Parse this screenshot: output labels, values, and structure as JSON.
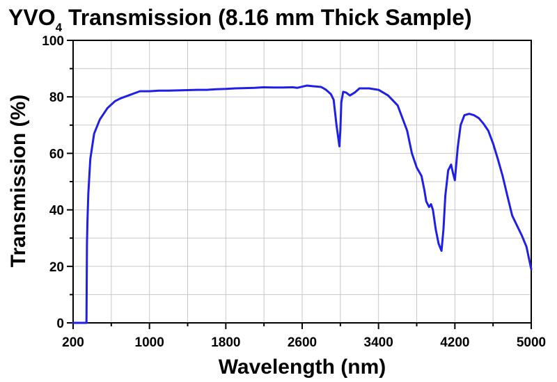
{
  "chart_data": {
    "type": "line",
    "title_main": "YVO",
    "title_sub": "4",
    "title_rest": " Transmission (8.16 mm Thick Sample)",
    "xlabel": "Wavelength (nm)",
    "ylabel": "Transmission (%)",
    "xlim": [
      200,
      5000
    ],
    "ylim": [
      0,
      100
    ],
    "xticks": [
      "200",
      "1000",
      "1800",
      "2600",
      "3400",
      "4200",
      "5000"
    ],
    "yticks": [
      "0",
      "20",
      "40",
      "60",
      "80",
      "100"
    ],
    "grid": true,
    "line_color": "#1f1fe6",
    "series": [
      {
        "x": [
          200,
          340,
          345,
          350,
          360,
          380,
          420,
          480,
          560,
          640,
          700,
          780,
          860,
          900,
          950,
          1000,
          1100,
          1200,
          1300,
          1400,
          1500,
          1600,
          1700,
          1800,
          1900,
          2000,
          2100,
          2200,
          2300,
          2400,
          2500,
          2550,
          2600,
          2650,
          2700,
          2800,
          2850,
          2900,
          2930,
          2960,
          2990,
          3000,
          3010,
          3030,
          3060,
          3100,
          3150,
          3200,
          3250,
          3300,
          3400,
          3500,
          3600,
          3700,
          3750,
          3800,
          3850,
          3880,
          3900,
          3930,
          3950,
          3970,
          4000,
          4030,
          4060,
          4080,
          4100,
          4130,
          4160,
          4180,
          4200,
          4230,
          4260,
          4300,
          4350,
          4400,
          4450,
          4500,
          4550,
          4600,
          4650,
          4700,
          4750,
          4800,
          4850,
          4900,
          4950,
          5000
        ],
        "y": [
          0,
          0,
          28,
          36,
          46,
          58,
          67,
          72,
          76,
          78.5,
          79.5,
          80.5,
          81.5,
          82,
          82,
          82,
          82.2,
          82.2,
          82.3,
          82.4,
          82.5,
          82.5,
          82.7,
          82.8,
          83,
          83.1,
          83.2,
          83.4,
          83.3,
          83.3,
          83.4,
          83.2,
          83.6,
          84,
          83.8,
          83.5,
          82.5,
          81,
          79,
          70,
          62.5,
          68,
          78,
          81.8,
          81.5,
          80.5,
          81.5,
          83,
          83,
          83,
          82.5,
          80.5,
          77,
          68,
          60,
          55,
          52,
          47,
          43,
          41,
          42,
          40,
          33,
          28,
          25.5,
          33,
          45,
          54,
          56,
          53,
          50.5,
          62,
          70,
          73.5,
          74,
          73.5,
          72.5,
          70.5,
          68,
          63.5,
          58,
          52,
          45,
          38,
          34.5,
          31,
          27,
          19
        ]
      }
    ]
  }
}
